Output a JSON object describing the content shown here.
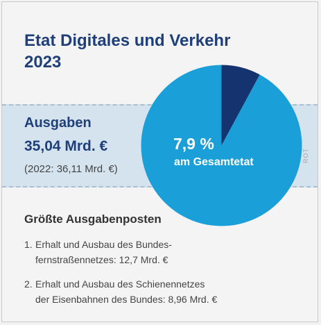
{
  "title": {
    "line1": "Etat Digitales und Verkehr",
    "line2": "2023"
  },
  "spending": {
    "label": "Ausgaben",
    "amount": "35,04 Mrd. €",
    "previous": "(2022: 36,11 Mrd. €)"
  },
  "share": {
    "value": "7,9 %",
    "caption": "am Gesamtetat"
  },
  "credit": "ROT",
  "top_items": {
    "heading": "Größte Ausgabenposten",
    "items": [
      {
        "num": "1.",
        "line1": "Erhalt und Ausbau des Bundes-",
        "line2": "fernstraßennetzes: 12,7 Mrd. €"
      },
      {
        "num": "2.",
        "line1": "Erhalt und Ausbau des Schienennetzes",
        "line2": "der Eisenbahnen des Bundes: 8,96 Mrd. €"
      }
    ]
  },
  "chart_data": {
    "type": "pie",
    "values": [
      7.9,
      92.1
    ],
    "colors": [
      "#14336f",
      "#1b9fd8"
    ]
  }
}
